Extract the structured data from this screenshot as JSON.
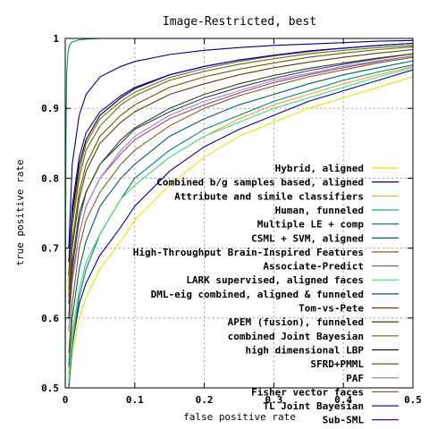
{
  "chart_data": {
    "type": "line",
    "title": "Image-Restricted, best",
    "xlabel": "false positive rate",
    "ylabel": "true positive rate",
    "xlim": [
      0,
      0.5
    ],
    "ylim": [
      0.5,
      1
    ],
    "xticks": [
      0,
      0.1,
      0.2,
      0.3,
      0.4,
      0.5
    ],
    "xtick_labels": [
      "0",
      "0.1",
      "0.2",
      "0.3",
      "0.4",
      "0.5"
    ],
    "yticks": [
      0.5,
      0.6,
      0.7,
      0.8,
      0.9,
      1
    ],
    "ytick_labels": [
      "0.5",
      "0.6",
      "0.7",
      "0.8",
      "0.9",
      "1"
    ],
    "grid": true,
    "legend_position": "bottom-right",
    "series": [
      {
        "name": "Hybrid, aligned",
        "color": "#e6e600",
        "x": [
          0.005,
          0.01,
          0.02,
          0.03,
          0.05,
          0.08,
          0.1,
          0.15,
          0.2,
          0.25,
          0.3,
          0.35,
          0.4,
          0.45,
          0.5
        ],
        "y": [
          0.5,
          0.55,
          0.6,
          0.63,
          0.67,
          0.71,
          0.74,
          0.79,
          0.83,
          0.86,
          0.88,
          0.9,
          0.915,
          0.93,
          0.945
        ]
      },
      {
        "name": "Combined b/g samples based, aligned",
        "color": "#0000a0",
        "x": [
          0.005,
          0.01,
          0.02,
          0.03,
          0.05,
          0.08,
          0.1,
          0.15,
          0.2,
          0.25,
          0.3,
          0.35,
          0.4,
          0.45,
          0.5
        ],
        "y": [
          0.5,
          0.56,
          0.62,
          0.65,
          0.69,
          0.73,
          0.76,
          0.81,
          0.845,
          0.87,
          0.89,
          0.91,
          0.925,
          0.94,
          0.955
        ]
      },
      {
        "name": "Attribute and simile classifiers",
        "color": "#f0a040",
        "x": [
          0.005,
          0.01,
          0.02,
          0.03,
          0.05,
          0.08,
          0.1,
          0.15,
          0.2,
          0.25,
          0.3,
          0.35,
          0.4,
          0.45,
          0.5
        ],
        "y": [
          0.52,
          0.58,
          0.64,
          0.68,
          0.72,
          0.77,
          0.79,
          0.83,
          0.86,
          0.885,
          0.905,
          0.92,
          0.935,
          0.948,
          0.96
        ]
      },
      {
        "name": "Human, funneled",
        "color": "#00a050",
        "x": [
          0.0,
          0.001,
          0.002,
          0.004,
          0.006,
          0.01,
          0.02,
          0.03,
          0.05,
          0.1,
          0.5
        ],
        "y": [
          0.5,
          0.85,
          0.95,
          0.98,
          0.99,
          0.995,
          0.998,
          0.999,
          1.0,
          1.0,
          1.0
        ]
      },
      {
        "name": "Multiple LE + comp",
        "color": "#008080",
        "x": [
          0.005,
          0.01,
          0.02,
          0.03,
          0.05,
          0.08,
          0.1,
          0.15,
          0.2,
          0.25,
          0.3,
          0.35,
          0.4,
          0.45,
          0.5
        ],
        "y": [
          0.5,
          0.56,
          0.63,
          0.67,
          0.72,
          0.77,
          0.8,
          0.84,
          0.87,
          0.89,
          0.91,
          0.925,
          0.94,
          0.952,
          0.962
        ]
      },
      {
        "name": "CSML + SVM, aligned",
        "color": "#006060",
        "x": [
          0.005,
          0.01,
          0.02,
          0.03,
          0.05,
          0.08,
          0.1,
          0.15,
          0.2,
          0.25,
          0.3,
          0.35,
          0.4,
          0.45,
          0.5
        ],
        "y": [
          0.53,
          0.6,
          0.67,
          0.71,
          0.76,
          0.8,
          0.82,
          0.86,
          0.885,
          0.905,
          0.92,
          0.935,
          0.948,
          0.958,
          0.968
        ]
      },
      {
        "name": "High-Throughput Brain-Inspired Features",
        "color": "#806020",
        "x": [
          0.005,
          0.01,
          0.02,
          0.03,
          0.05,
          0.08,
          0.1,
          0.15,
          0.2,
          0.25,
          0.3,
          0.35,
          0.4,
          0.45,
          0.5
        ],
        "y": [
          0.55,
          0.62,
          0.7,
          0.74,
          0.78,
          0.82,
          0.84,
          0.875,
          0.9,
          0.918,
          0.932,
          0.945,
          0.955,
          0.965,
          0.973
        ]
      },
      {
        "name": "Associate-Predict",
        "color": "#a04080",
        "x": [
          0.005,
          0.01,
          0.02,
          0.03,
          0.05,
          0.08,
          0.1,
          0.15,
          0.2,
          0.25,
          0.3,
          0.35,
          0.4,
          0.45,
          0.5
        ],
        "y": [
          0.58,
          0.66,
          0.72,
          0.76,
          0.8,
          0.835,
          0.855,
          0.885,
          0.905,
          0.922,
          0.937,
          0.948,
          0.958,
          0.967,
          0.975
        ]
      },
      {
        "name": "LARK supervised, aligned faces",
        "color": "#40e080",
        "x": [
          0.005,
          0.01,
          0.02,
          0.03,
          0.05,
          0.08,
          0.1,
          0.15,
          0.2,
          0.25,
          0.3,
          0.35,
          0.4,
          0.45,
          0.5
        ],
        "y": [
          0.51,
          0.57,
          0.64,
          0.68,
          0.72,
          0.77,
          0.79,
          0.83,
          0.86,
          0.88,
          0.9,
          0.915,
          0.93,
          0.945,
          0.958
        ]
      },
      {
        "name": "DML-eig combined, aligned & funneled",
        "color": "#204080",
        "x": [
          0.005,
          0.01,
          0.02,
          0.03,
          0.05,
          0.08,
          0.1,
          0.15,
          0.2,
          0.25,
          0.3,
          0.35,
          0.4,
          0.45,
          0.5
        ],
        "y": [
          0.6,
          0.68,
          0.75,
          0.78,
          0.82,
          0.85,
          0.87,
          0.895,
          0.915,
          0.93,
          0.943,
          0.954,
          0.963,
          0.971,
          0.978
        ]
      },
      {
        "name": "Tom-vs-Pete",
        "color": "#604000",
        "x": [
          0.005,
          0.01,
          0.02,
          0.03,
          0.05,
          0.08,
          0.1,
          0.15,
          0.2,
          0.25,
          0.3,
          0.35,
          0.4,
          0.45,
          0.5
        ],
        "y": [
          0.62,
          0.7,
          0.77,
          0.81,
          0.85,
          0.88,
          0.895,
          0.92,
          0.935,
          0.948,
          0.958,
          0.966,
          0.973,
          0.979,
          0.984
        ]
      },
      {
        "name": "APEM (fusion), funneled",
        "color": "#404000",
        "x": [
          0.005,
          0.01,
          0.02,
          0.03,
          0.05,
          0.08,
          0.1,
          0.15,
          0.2,
          0.25,
          0.3,
          0.35,
          0.4,
          0.45,
          0.5
        ],
        "y": [
          0.6,
          0.67,
          0.74,
          0.78,
          0.82,
          0.855,
          0.872,
          0.9,
          0.92,
          0.935,
          0.947,
          0.957,
          0.965,
          0.972,
          0.978
        ]
      },
      {
        "name": "combined Joint Bayesian",
        "color": "#607000",
        "x": [
          0.005,
          0.01,
          0.02,
          0.03,
          0.05,
          0.08,
          0.1,
          0.15,
          0.2,
          0.25,
          0.3,
          0.35,
          0.4,
          0.45,
          0.5
        ],
        "y": [
          0.64,
          0.73,
          0.8,
          0.84,
          0.875,
          0.905,
          0.918,
          0.94,
          0.953,
          0.963,
          0.971,
          0.978,
          0.983,
          0.987,
          0.99
        ]
      },
      {
        "name": "high dimensional LBP",
        "color": "#000000",
        "x": [
          0.005,
          0.01,
          0.02,
          0.03,
          0.05,
          0.08,
          0.1,
          0.15,
          0.2,
          0.25,
          0.3,
          0.35,
          0.4,
          0.45,
          0.5
        ],
        "y": [
          0.66,
          0.75,
          0.82,
          0.855,
          0.89,
          0.915,
          0.928,
          0.948,
          0.96,
          0.969,
          0.976,
          0.982,
          0.986,
          0.99,
          0.993
        ]
      },
      {
        "name": "SFRD+PMML",
        "color": "#606000",
        "x": [
          0.005,
          0.01,
          0.02,
          0.03,
          0.05,
          0.08,
          0.1,
          0.15,
          0.2,
          0.25,
          0.3,
          0.35,
          0.4,
          0.45,
          0.5
        ],
        "y": [
          0.63,
          0.71,
          0.78,
          0.82,
          0.86,
          0.89,
          0.905,
          0.93,
          0.945,
          0.956,
          0.965,
          0.973,
          0.979,
          0.984,
          0.988
        ]
      },
      {
        "name": "PAF",
        "color": "#a080c0",
        "x": [
          0.005,
          0.01,
          0.02,
          0.03,
          0.05,
          0.08,
          0.1,
          0.15,
          0.2,
          0.25,
          0.3,
          0.35,
          0.4,
          0.45,
          0.5
        ],
        "y": [
          0.58,
          0.65,
          0.72,
          0.76,
          0.8,
          0.84,
          0.86,
          0.89,
          0.91,
          0.925,
          0.94,
          0.95,
          0.96,
          0.968,
          0.975
        ]
      },
      {
        "name": "Fisher vector faces",
        "color": "#806040",
        "x": [
          0.005,
          0.01,
          0.02,
          0.03,
          0.05,
          0.08,
          0.1,
          0.15,
          0.2,
          0.25,
          0.3,
          0.35,
          0.4,
          0.45,
          0.5
        ],
        "y": [
          0.65,
          0.74,
          0.81,
          0.85,
          0.885,
          0.91,
          0.923,
          0.944,
          0.957,
          0.967,
          0.975,
          0.981,
          0.986,
          0.99,
          0.993
        ]
      },
      {
        "name": "TL Joint Bayesian",
        "color": "#000080",
        "x": [
          0.005,
          0.01,
          0.02,
          0.03,
          0.05,
          0.08,
          0.1,
          0.15,
          0.2,
          0.25,
          0.3,
          0.35,
          0.4,
          0.45,
          0.5
        ],
        "y": [
          0.7,
          0.82,
          0.89,
          0.92,
          0.945,
          0.96,
          0.967,
          0.977,
          0.983,
          0.987,
          0.99,
          0.992,
          0.994,
          0.996,
          0.997
        ]
      },
      {
        "name": "Sub-SML",
        "color": "#0000c0",
        "x": [
          0.005,
          0.01,
          0.02,
          0.03,
          0.05,
          0.08,
          0.1,
          0.15,
          0.2,
          0.25,
          0.3,
          0.35,
          0.4,
          0.45,
          0.5
        ],
        "y": [
          0.68,
          0.76,
          0.83,
          0.865,
          0.895,
          0.918,
          0.93,
          0.948,
          0.96,
          0.969,
          0.976,
          0.982,
          0.986,
          0.99,
          0.993
        ]
      }
    ]
  }
}
